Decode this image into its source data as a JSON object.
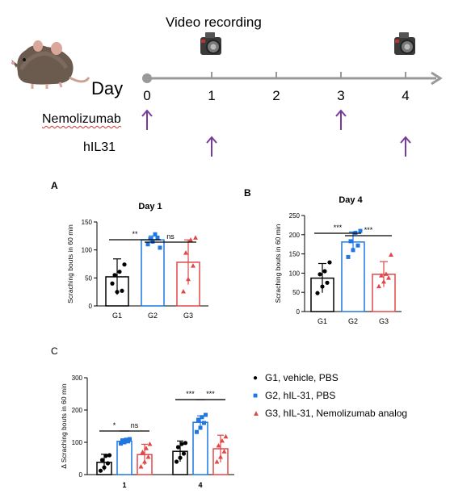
{
  "timeline": {
    "video_label": "Video recording",
    "day_label": "Day",
    "days": [
      "0",
      "1",
      "2",
      "3",
      "4"
    ],
    "drug1_label": "Nemolizumab",
    "drug2_label": "hIL31",
    "drug1_days": [
      0,
      3
    ],
    "drug2_days": [
      1,
      4
    ],
    "video_days": [
      1,
      4
    ],
    "colors": {
      "axis": "#999999",
      "arrow": "#7a3a9a"
    }
  },
  "colors": {
    "G1": "#000000",
    "G2": "#1f77e0",
    "G3": "#e04848"
  },
  "legend": [
    {
      "marker": "●",
      "label": "G1, vehicle, PBS",
      "group": "G1"
    },
    {
      "marker": "■",
      "label": "G2, hIL-31, PBS",
      "group": "G2"
    },
    {
      "marker": "▲",
      "label": "G3, hIL-31, Nemolizumab analog",
      "group": "G3"
    }
  ],
  "chart_data": [
    {
      "type": "bar",
      "panel": "A",
      "title": "Day 1",
      "ylabel": "Scraching bouts  in 60 min",
      "ylim": [
        0,
        150
      ],
      "yticks": [
        "0",
        "50",
        "100",
        "150"
      ],
      "categories": [
        "G1",
        "G2",
        "G3"
      ],
      "values": [
        52,
        118,
        78
      ],
      "errors": [
        32,
        7,
        40
      ],
      "points": [
        [
          40,
          25,
          27,
          55,
          61,
          74
        ],
        [
          110,
          115,
          122,
          120,
          128,
          104
        ],
        [
          26,
          48,
          72,
          95,
          118,
          122
        ]
      ],
      "significance": [
        {
          "from": 0,
          "to": 1,
          "label": "**"
        },
        {
          "from": 1,
          "to": 2,
          "label": "ns"
        }
      ]
    },
    {
      "type": "bar",
      "panel": "B",
      "title": "Day 4",
      "ylabel": "Scraching bouts  in 60 min",
      "ylim": [
        0,
        250
      ],
      "yticks": [
        "0",
        "50",
        "100",
        "150",
        "200",
        "250"
      ],
      "categories": [
        "G1",
        "G2",
        "G3"
      ],
      "values": [
        87,
        181,
        97
      ],
      "errors": [
        38,
        26,
        33
      ],
      "points": [
        [
          48,
          65,
          75,
          97,
          105,
          128
        ],
        [
          142,
          160,
          172,
          183,
          205,
          210
        ],
        [
          66,
          78,
          88,
          94,
          98,
          148
        ]
      ],
      "significance": [
        {
          "from": 0,
          "to": 1,
          "label": "***"
        },
        {
          "from": 1,
          "to": 2,
          "label": "***"
        }
      ]
    },
    {
      "type": "bar",
      "panel": "C",
      "title": "",
      "ylabel": "Δ Scraching bouts in 60 min",
      "ylim": [
        0,
        300
      ],
      "yticks": [
        "0",
        "100",
        "200",
        "300"
      ],
      "categories": [
        "1",
        "4"
      ],
      "series": [
        {
          "group": "G1",
          "values": [
            38,
            72
          ],
          "errors": [
            25,
            32
          ],
          "points": [
            [
              12,
              22,
              35,
              45,
              58,
              60
            ],
            [
              40,
              52,
              65,
              85,
              95,
              98
            ]
          ]
        },
        {
          "group": "G2",
          "values": [
            103,
            162
          ],
          "errors": [
            7,
            20
          ],
          "points": [
            [
              96,
              100,
              103,
              106,
              108,
              110
            ],
            [
              132,
              145,
              160,
              170,
              178,
              185
            ]
          ]
        },
        {
          "group": "G3",
          "values": [
            62,
            80
          ],
          "errors": [
            32,
            42
          ],
          "points": [
            [
              25,
              40,
              55,
              70,
              82,
              95
            ],
            [
              40,
              55,
              72,
              90,
              105,
              118
            ]
          ]
        }
      ],
      "significance": [
        {
          "category": 0,
          "from": 0,
          "to": 1,
          "label": "*"
        },
        {
          "category": 0,
          "from": 1,
          "to": 2,
          "label": "ns"
        },
        {
          "category": 1,
          "from": 0,
          "to": 1,
          "label": "***"
        },
        {
          "category": 1,
          "from": 1,
          "to": 2,
          "label": "***"
        }
      ]
    }
  ]
}
